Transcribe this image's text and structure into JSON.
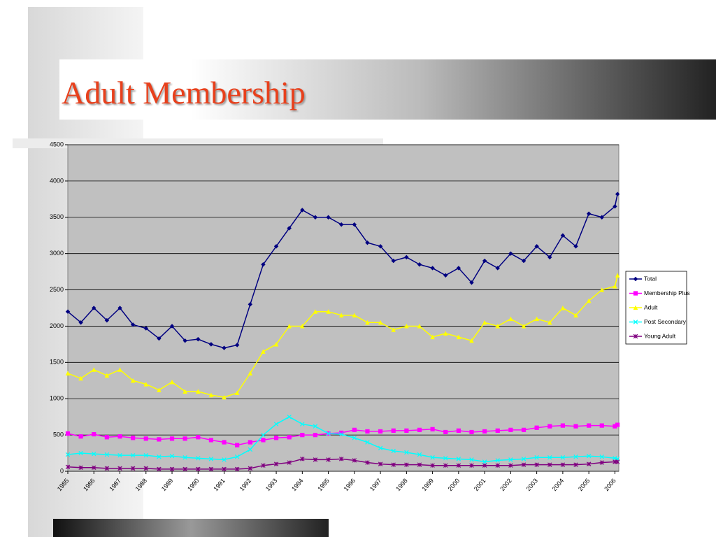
{
  "chart_data": {
    "type": "line",
    "title": "Adult Membership",
    "x": [
      1985,
      1985.5,
      1986,
      1986.5,
      1987,
      1987.5,
      1988,
      1988.5,
      1989,
      1989.5,
      1990,
      1990.5,
      1991,
      1991.5,
      1992,
      1992.5,
      1993,
      1993.5,
      1994,
      1994.5,
      1995,
      1995.5,
      1996,
      1996.5,
      1997,
      1997.5,
      1998,
      1998.5,
      1999,
      1999.5,
      2000,
      2000.5,
      2001,
      2001.5,
      2002,
      2002.5,
      2003,
      2003.5,
      2004,
      2004.5,
      2005,
      2005.5,
      2006,
      2006.1
    ],
    "xlim": [
      1985,
      2006.15
    ],
    "xticks": [
      1985,
      1986,
      1987,
      1988,
      1989,
      1990,
      1991,
      1992,
      1993,
      1994,
      1995,
      1996,
      1997,
      1998,
      1999,
      2000,
      2001,
      2002,
      2003,
      2004,
      2005,
      2006
    ],
    "ylim": [
      0,
      4500
    ],
    "yticks": [
      0,
      500,
      1000,
      1500,
      2000,
      2500,
      3000,
      3500,
      4000,
      4500
    ],
    "grid": true,
    "legend": "right",
    "series": [
      {
        "name": "Total",
        "color": "#000080",
        "marker": "diamond",
        "values": [
          2200,
          2050,
          2250,
          2080,
          2250,
          2020,
          1970,
          1830,
          2000,
          1800,
          1820,
          1750,
          1700,
          1740,
          2300,
          2850,
          3100,
          3350,
          3600,
          3500,
          3500,
          3400,
          3400,
          3150,
          3100,
          2900,
          2950,
          2850,
          2800,
          2700,
          2800,
          2600,
          2900,
          2800,
          3000,
          2900,
          3100,
          2950,
          3250,
          3100,
          3550,
          3500,
          3650,
          3820
        ]
      },
      {
        "name": "Membership Plus",
        "color": "#ff00ff",
        "marker": "square",
        "values": [
          520,
          480,
          510,
          470,
          480,
          460,
          450,
          440,
          450,
          450,
          470,
          430,
          400,
          360,
          400,
          430,
          460,
          470,
          500,
          500,
          520,
          530,
          570,
          550,
          550,
          560,
          560,
          570,
          580,
          540,
          560,
          540,
          550,
          560,
          570,
          570,
          600,
          620,
          630,
          620,
          630,
          630,
          620,
          640
        ]
      },
      {
        "name": "Adult",
        "color": "#ffff00",
        "marker": "triangle",
        "values": [
          1350,
          1280,
          1400,
          1320,
          1400,
          1250,
          1200,
          1120,
          1230,
          1100,
          1100,
          1050,
          1020,
          1080,
          1350,
          1650,
          1750,
          2000,
          2000,
          2200,
          2200,
          2150,
          2150,
          2050,
          2050,
          1950,
          2000,
          2000,
          1850,
          1900,
          1850,
          1800,
          2050,
          2000,
          2100,
          2000,
          2100,
          2050,
          2250,
          2150,
          2350,
          2500,
          2550,
          2700
        ]
      },
      {
        "name": "Post Secondary",
        "color": "#00ffff",
        "marker": "x",
        "values": [
          230,
          250,
          240,
          230,
          220,
          220,
          220,
          200,
          210,
          190,
          180,
          170,
          160,
          200,
          300,
          500,
          650,
          750,
          650,
          620,
          520,
          510,
          460,
          400,
          320,
          280,
          260,
          230,
          190,
          180,
          170,
          160,
          130,
          150,
          160,
          170,
          190,
          190,
          190,
          200,
          210,
          200,
          180,
          170
        ]
      },
      {
        "name": "Young Adult",
        "color": "#800080",
        "marker": "star",
        "values": [
          60,
          50,
          50,
          40,
          40,
          40,
          40,
          30,
          30,
          30,
          30,
          30,
          30,
          30,
          40,
          80,
          100,
          120,
          170,
          160,
          160,
          170,
          150,
          120,
          100,
          90,
          90,
          90,
          80,
          80,
          80,
          80,
          80,
          80,
          80,
          90,
          90,
          90,
          90,
          90,
          100,
          120,
          130,
          130
        ]
      }
    ]
  }
}
